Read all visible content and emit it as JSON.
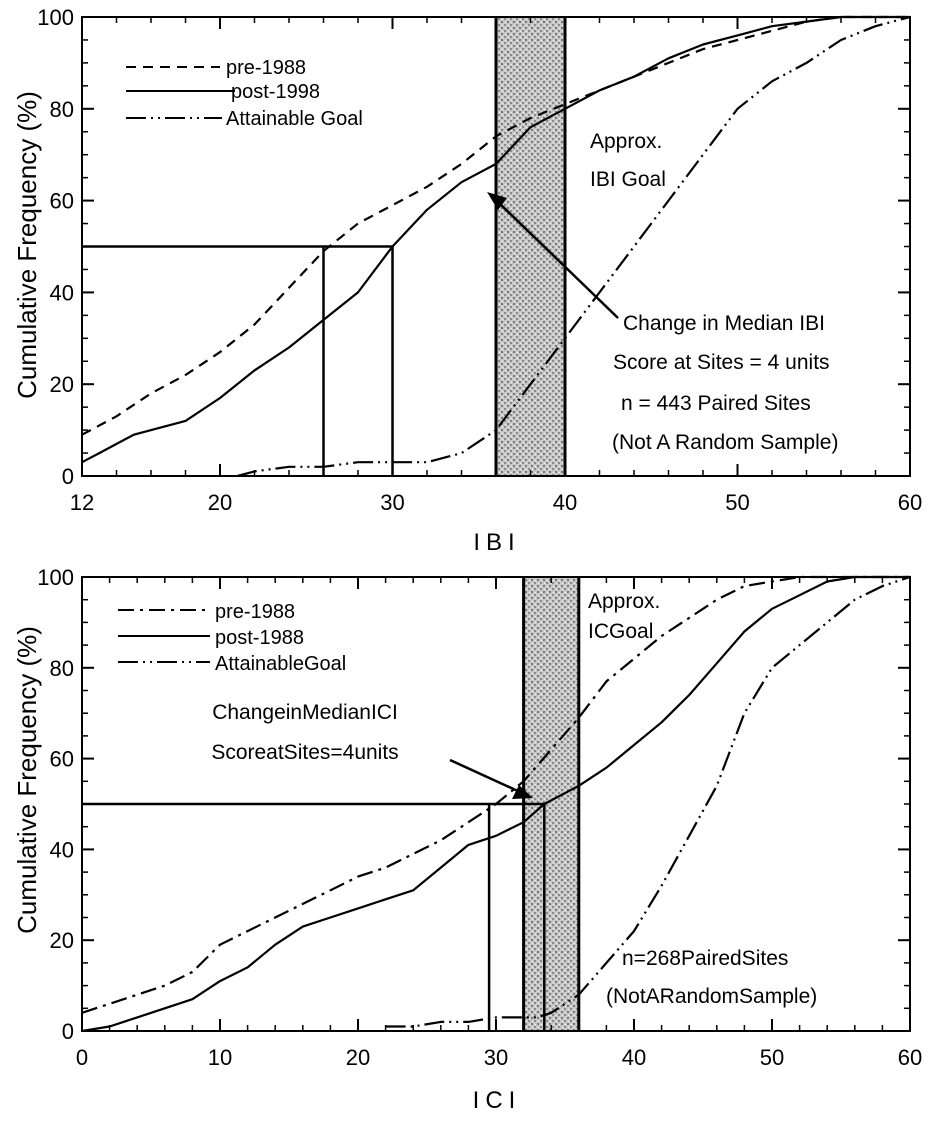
{
  "colors": {
    "ink": "#000000",
    "goal_band": "#a8a8a8",
    "background": "#ffffff"
  },
  "chart_data": [
    {
      "type": "line",
      "xlabel": "IBI",
      "ylabel": "Cumulative Frequency (%)",
      "xlim": [
        12,
        60
      ],
      "ylim": [
        0,
        100
      ],
      "xtick_labels": [
        "12",
        "20",
        "30",
        "40",
        "50",
        "60"
      ],
      "ytick_labels": [
        "0",
        "20",
        "40",
        "60",
        "80",
        "100"
      ],
      "legend_position": "top-left",
      "grid": false,
      "goal_band": {
        "x0": 36,
        "x1": 40,
        "label": [
          "Approx.",
          "IBI Goal"
        ]
      },
      "median_lines": [
        {
          "series": "pre-1988",
          "x": 26,
          "y": 50
        },
        {
          "series": "post-1998",
          "x": 30,
          "y": 50
        }
      ],
      "series": [
        {
          "name": "pre-1988",
          "style": "dashed",
          "x": [
            12,
            14,
            16,
            18,
            20,
            22,
            24,
            26,
            28,
            30,
            32,
            34,
            36,
            38,
            40,
            42,
            44,
            46,
            48,
            50,
            52,
            54,
            56,
            58,
            60
          ],
          "y": [
            9,
            13,
            18,
            22,
            27,
            33,
            41,
            49,
            55,
            59,
            63,
            68,
            74,
            78,
            81,
            84,
            87,
            90,
            93,
            95,
            97,
            99,
            100,
            100,
            100
          ]
        },
        {
          "name": "post-1998",
          "style": "solid",
          "x": [
            12,
            13,
            15,
            18,
            20,
            22,
            24,
            26,
            28,
            30,
            32,
            34,
            36,
            38,
            40,
            42,
            44,
            46,
            48,
            50,
            52,
            54,
            56,
            58,
            60
          ],
          "y": [
            3,
            5,
            9,
            12,
            17,
            23,
            28,
            34,
            40,
            50,
            58,
            64,
            68,
            76,
            80,
            84,
            87,
            91,
            94,
            96,
            98,
            99,
            100,
            100,
            100
          ]
        },
        {
          "name": "Attainable Goal",
          "style": "dash-dot-dot",
          "x": [
            21,
            22,
            24,
            26,
            28,
            30,
            32,
            34,
            36,
            38,
            40,
            42,
            44,
            46,
            48,
            50,
            52,
            54,
            56,
            58,
            60
          ],
          "y": [
            0,
            1,
            2,
            2,
            3,
            3,
            3,
            5,
            10,
            20,
            30,
            40,
            50,
            60,
            70,
            80,
            86,
            90,
            95,
            98,
            100
          ]
        }
      ],
      "annotations": [
        {
          "lines": [
            "Change in Median IBI",
            "Score at Sites = 4 units"
          ],
          "arrow_to": [
            34.5,
            64
          ]
        },
        {
          "lines": [
            "n = 443 Paired Sites",
            "(Not A Random Sample)"
          ]
        }
      ]
    },
    {
      "type": "line",
      "xlabel": "ICI",
      "ylabel": "Cumulative Frequency (%)",
      "xlim": [
        0,
        60
      ],
      "ylim": [
        0,
        100
      ],
      "xtick_labels": [
        "0",
        "10",
        "20",
        "30",
        "40",
        "50",
        "60"
      ],
      "ytick_labels": [
        "0",
        "20",
        "40",
        "60",
        "80",
        "100"
      ],
      "legend_position": "top-left",
      "grid": false,
      "goal_band": {
        "x0": 32,
        "x1": 36,
        "label": [
          "Approx.",
          "ICGoal"
        ]
      },
      "median_lines": [
        {
          "series": "pre-1988",
          "x": 29.5,
          "y": 50
        },
        {
          "series": "post-1988",
          "x": 33.5,
          "y": 50
        }
      ],
      "series": [
        {
          "name": "pre-1988",
          "style": "dash-dot",
          "x": [
            0,
            2,
            4,
            6,
            8,
            10,
            12,
            14,
            16,
            18,
            20,
            22,
            24,
            26,
            28,
            30,
            32,
            34,
            36,
            38,
            40,
            42,
            44,
            46,
            48,
            50,
            52,
            54,
            56,
            58,
            60
          ],
          "y": [
            4,
            6,
            8,
            10,
            13,
            19,
            22,
            25,
            28,
            31,
            34,
            36,
            39,
            42,
            46,
            50,
            55,
            62,
            69,
            77,
            82,
            87,
            91,
            95,
            98,
            99,
            100,
            100,
            100,
            100,
            100
          ]
        },
        {
          "name": "post-1988",
          "style": "solid",
          "x": [
            0,
            2,
            4,
            6,
            8,
            10,
            12,
            14,
            16,
            18,
            20,
            22,
            24,
            26,
            28,
            30,
            32,
            33.5,
            36,
            38,
            40,
            42,
            44,
            46,
            48,
            50,
            52,
            54,
            56,
            58,
            60
          ],
          "y": [
            0,
            1,
            3,
            5,
            7,
            11,
            14,
            19,
            23,
            25,
            27,
            29,
            31,
            36,
            41,
            43,
            46,
            50,
            54,
            58,
            63,
            68,
            74,
            81,
            88,
            93,
            96,
            99,
            100,
            100,
            100
          ]
        },
        {
          "name": "AttainableGoal",
          "style": "dash-dot-dot",
          "x": [
            22,
            24,
            26,
            28,
            30,
            32,
            33,
            34,
            36,
            38,
            40,
            42,
            44,
            46,
            48,
            50,
            52,
            54,
            56,
            58,
            60
          ],
          "y": [
            1,
            1,
            2,
            2,
            3,
            3,
            3,
            4,
            8,
            15,
            22,
            32,
            43,
            54,
            70,
            80,
            85,
            90,
            95,
            98,
            100
          ]
        }
      ],
      "annotations": [
        {
          "lines": [
            "ChangeinMedianICI",
            "ScoreatSites=4units"
          ],
          "arrow_to": [
            33.5,
            51
          ]
        },
        {
          "lines": [
            "n=268PairedSites",
            "(NotARandomSample)"
          ]
        }
      ]
    }
  ]
}
